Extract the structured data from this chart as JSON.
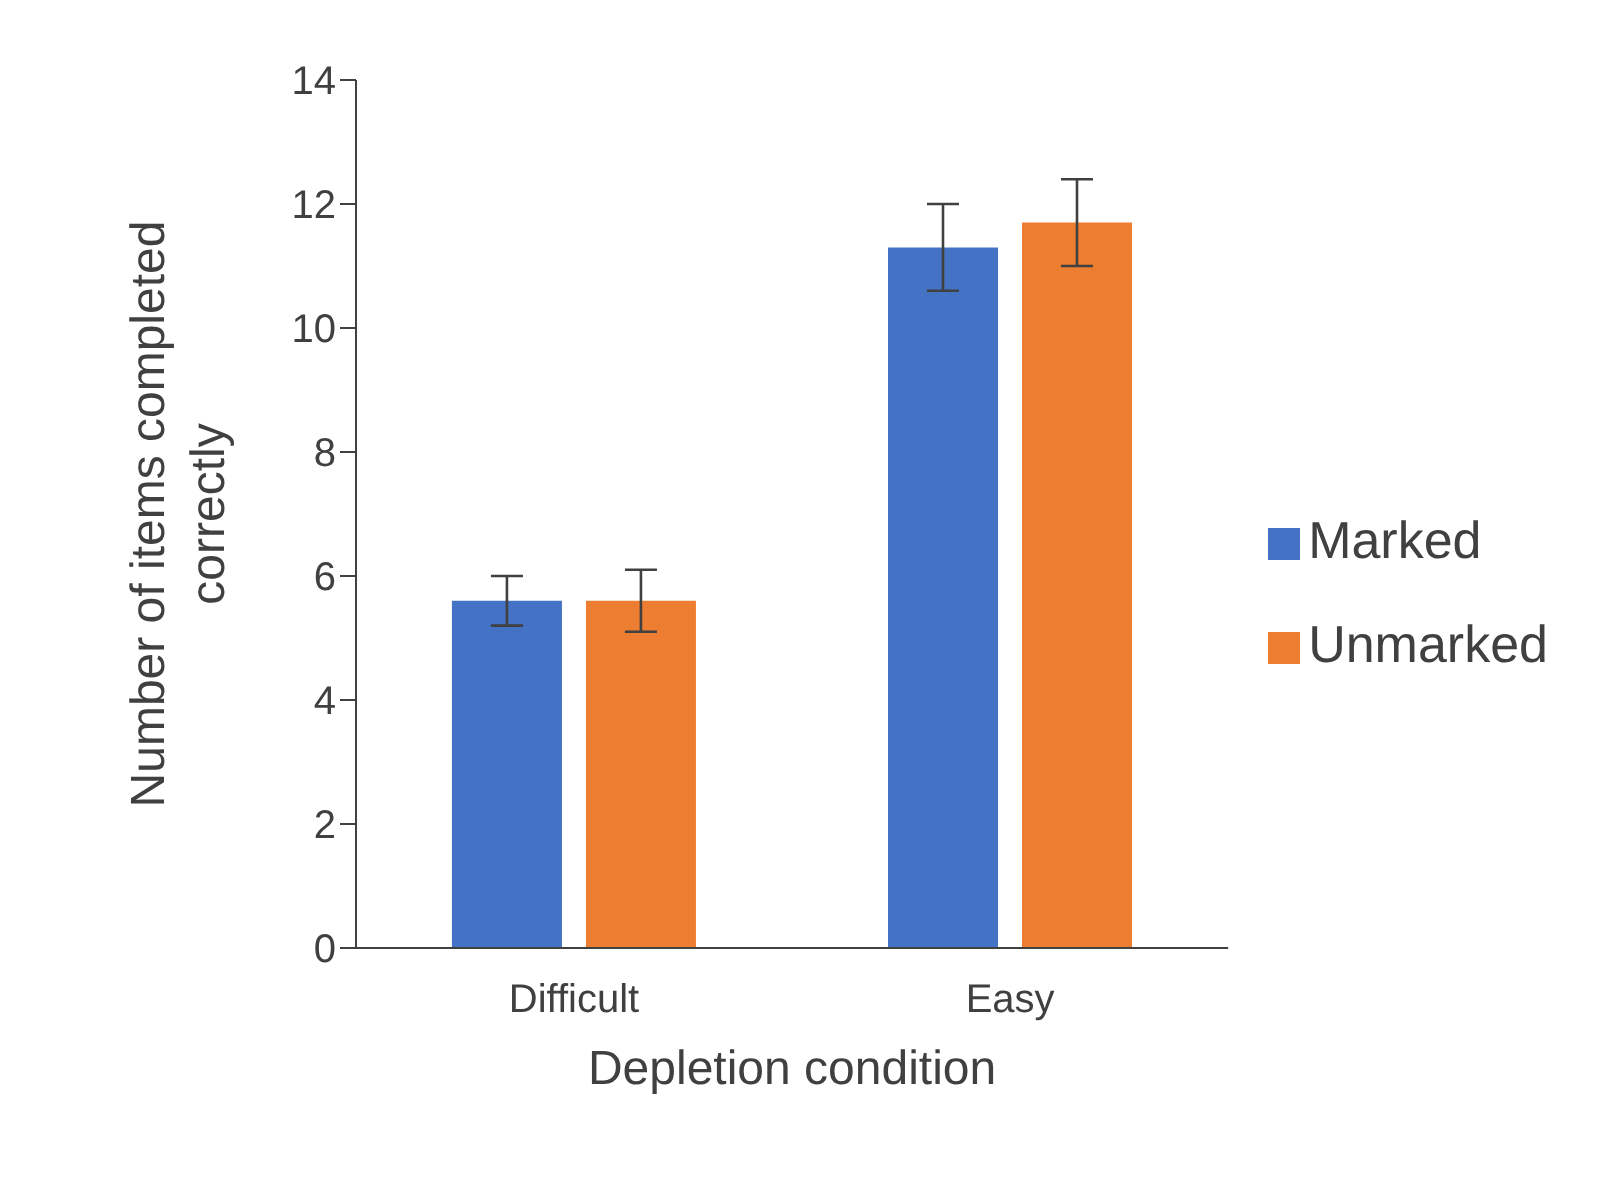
{
  "chart_data": {
    "type": "bar",
    "xlabel": "Depletion condition",
    "ylabel": "Number of items completed correctly",
    "categories": [
      "Difficult",
      "Easy"
    ],
    "series": [
      {
        "name": "Marked",
        "color": "#4472c4",
        "values": [
          5.6,
          11.3
        ],
        "errors": [
          0.4,
          0.7
        ]
      },
      {
        "name": "Unmarked",
        "color": "#ed7d31",
        "values": [
          5.6,
          11.7
        ],
        "errors": [
          0.5,
          0.7
        ]
      }
    ],
    "ylim": [
      0,
      14
    ],
    "yticks": [
      0,
      2,
      4,
      6,
      8,
      10,
      12,
      14
    ],
    "grid": false,
    "legend": "right"
  }
}
